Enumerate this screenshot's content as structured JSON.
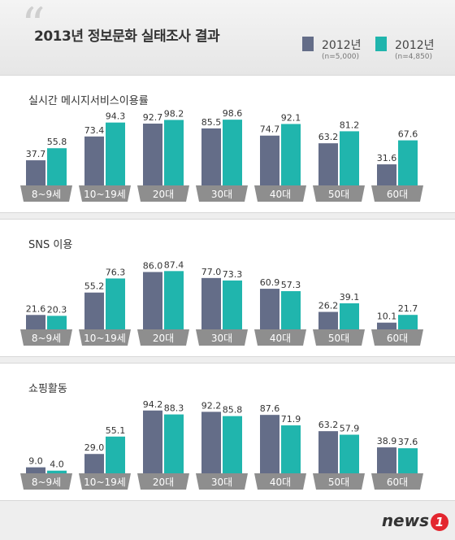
{
  "title": "2013년 정보문화 실태조사 결과",
  "legend": [
    {
      "label": "2012년",
      "sub": "(n=5,000)",
      "color": "#646d88"
    },
    {
      "label": "2012년",
      "sub": "(n=4,850)",
      "color": "#20b5ad"
    }
  ],
  "colors": {
    "series1": "#646d88",
    "series2": "#20b5ad",
    "tab": "#8e8e8e",
    "tab_text": "#ffffff"
  },
  "chart_data": [
    {
      "type": "bar",
      "title": "실시간 메시지서비스이용률",
      "categories": [
        "8~9세",
        "10~19세",
        "20대",
        "30대",
        "40대",
        "50대",
        "60대"
      ],
      "series": [
        {
          "name": "2012년",
          "values": [
            37.7,
            73.4,
            92.7,
            85.5,
            74.7,
            63.2,
            31.6
          ]
        },
        {
          "name": "2012년",
          "values": [
            55.8,
            94.3,
            98.2,
            98.6,
            92.1,
            81.2,
            67.6
          ]
        }
      ],
      "ylim": [
        0,
        100
      ]
    },
    {
      "type": "bar",
      "title": "SNS 이용",
      "categories": [
        "8~9세",
        "10~19세",
        "20대",
        "30대",
        "40대",
        "50대",
        "60대"
      ],
      "series": [
        {
          "name": "2012년",
          "values": [
            21.6,
            55.2,
            86.0,
            77.0,
            60.9,
            26.2,
            10.1
          ]
        },
        {
          "name": "2012년",
          "values": [
            20.3,
            76.3,
            87.4,
            73.3,
            57.3,
            39.1,
            21.7
          ]
        }
      ],
      "ylim": [
        0,
        100
      ]
    },
    {
      "type": "bar",
      "title": "쇼핑활동",
      "categories": [
        "8~9세",
        "10~19세",
        "20대",
        "30대",
        "40대",
        "50대",
        "60대"
      ],
      "series": [
        {
          "name": "2012년",
          "values": [
            9.0,
            29.0,
            94.2,
            92.2,
            87.6,
            63.2,
            38.9
          ]
        },
        {
          "name": "2012년",
          "values": [
            4.0,
            55.1,
            88.3,
            85.8,
            71.9,
            57.9,
            37.6
          ]
        }
      ],
      "ylim": [
        0,
        100
      ]
    }
  ],
  "watermark": {
    "text": "news",
    "number": "1"
  }
}
